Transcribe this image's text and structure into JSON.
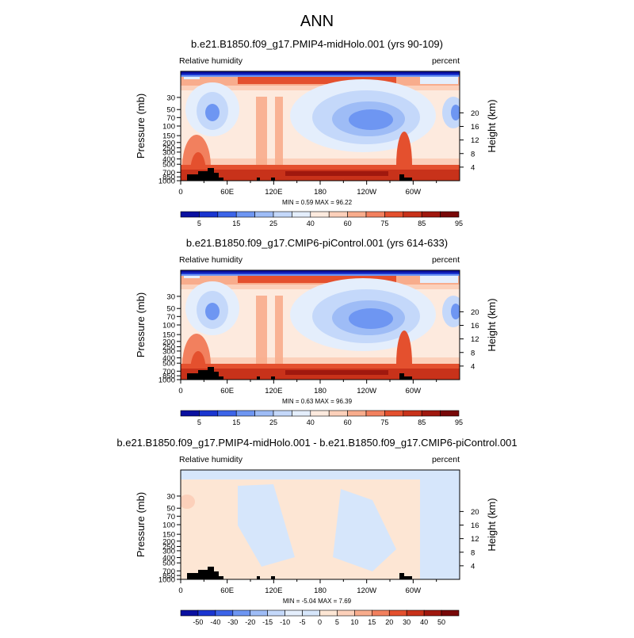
{
  "figure": {
    "title": "ANN"
  },
  "panels": [
    {
      "title": "b.e21.B1850.f09_g17.PMIP4-midHolo.001 (yrs 90-109)",
      "left_label": "Relative humidity",
      "right_label": "percent",
      "ylabel": "Pressure (mb)",
      "ylabel_right": "Height (km)",
      "stats": "MIN =   0.59  MAX =  96.22",
      "colorbar_labels": [
        "5",
        "15",
        "25",
        "40",
        "60",
        "75",
        "85",
        "95"
      ]
    },
    {
      "title": "b.e21.B1850.f09_g17.CMIP6-piControl.001 (yrs 614-633)",
      "left_label": "Relative humidity",
      "right_label": "percent",
      "ylabel": "Pressure (mb)",
      "ylabel_right": "Height (km)",
      "stats": "MIN =   0.63  MAX =  96.39",
      "colorbar_labels": [
        "5",
        "15",
        "25",
        "40",
        "60",
        "75",
        "85",
        "95"
      ]
    },
    {
      "title": "b.e21.B1850.f09_g17.PMIP4-midHolo.001 - b.e21.B1850.f09_g17.CMIP6-piControl.001",
      "left_label": "Relative humidity",
      "right_label": "percent",
      "ylabel": "Pressure (mb)",
      "ylabel_right": "Height (km)",
      "stats": "MIN =  -5.04  MAX =   7.69",
      "colorbar_labels": [
        "-50",
        "-40",
        "-30",
        "-20",
        "-15",
        "-10",
        "-5",
        "0",
        "5",
        "10",
        "15",
        "20",
        "30",
        "40",
        "50"
      ]
    }
  ],
  "axes": {
    "x_ticks": [
      "0",
      "60E",
      "120E",
      "180",
      "120W",
      "60W"
    ],
    "p_ticks": [
      "1000",
      "850",
      "700",
      "500",
      "400",
      "300",
      "250",
      "200",
      "150",
      "100",
      "70",
      "50",
      "30"
    ],
    "z_ticks": [
      "4",
      "8",
      "12",
      "16",
      "20"
    ]
  },
  "colors": {
    "abs_scale": [
      "#0a10a0",
      "#1a35d0",
      "#3c64e8",
      "#6e96f2",
      "#9ebcf6",
      "#c4d8fa",
      "#e4eefc",
      "#fdeade",
      "#fcd0ba",
      "#f8ac8c",
      "#f2805e",
      "#e4502e",
      "#c8321a",
      "#a0180e",
      "#780808"
    ],
    "diff_scale": [
      "#0a10a0",
      "#1a35d0",
      "#3c64e8",
      "#6e96f2",
      "#9ebcf6",
      "#c4d8fa",
      "#e4eefc",
      "#d6e6fb",
      "#fde6d4",
      "#fcd0ba",
      "#f8ac8c",
      "#f2805e",
      "#e4502e",
      "#c8321a",
      "#a0180e",
      "#780808"
    ]
  },
  "chart_data": [
    {
      "type": "heatmap",
      "title": "b.e21.B1850.f09_g17.PMIP4-midHolo.001 (yrs 90-109)",
      "variable": "Relative humidity",
      "units": "percent",
      "xlabel": "",
      "ylabel": "Pressure (mb)",
      "ylabel_right": "Height (km)",
      "x": [
        "0",
        "60E",
        "120E",
        "180",
        "120W",
        "60W"
      ],
      "y": [
        1000,
        850,
        700,
        500,
        400,
        300,
        250,
        200,
        150,
        100,
        70,
        50,
        30
      ],
      "y_scale": "log",
      "levels": [
        5,
        15,
        25,
        40,
        60,
        75,
        85,
        95
      ],
      "min": 0.59,
      "max": 96.22
    },
    {
      "type": "heatmap",
      "title": "b.e21.B1850.f09_g17.CMIP6-piControl.001 (yrs 614-633)",
      "variable": "Relative humidity",
      "units": "percent",
      "xlabel": "",
      "ylabel": "Pressure (mb)",
      "ylabel_right": "Height (km)",
      "x": [
        "0",
        "60E",
        "120E",
        "180",
        "120W",
        "60W"
      ],
      "y": [
        1000,
        850,
        700,
        500,
        400,
        300,
        250,
        200,
        150,
        100,
        70,
        50,
        30
      ],
      "y_scale": "log",
      "levels": [
        5,
        15,
        25,
        40,
        60,
        75,
        85,
        95
      ],
      "min": 0.63,
      "max": 96.39
    },
    {
      "type": "heatmap",
      "title": "b.e21.B1850.f09_g17.PMIP4-midHolo.001 - b.e21.B1850.f09_g17.CMIP6-piControl.001",
      "variable": "Relative humidity",
      "units": "percent",
      "xlabel": "",
      "ylabel": "Pressure (mb)",
      "ylabel_right": "Height (km)",
      "x": [
        "0",
        "60E",
        "120E",
        "180",
        "120W",
        "60W"
      ],
      "y": [
        1000,
        850,
        700,
        500,
        400,
        300,
        250,
        200,
        150,
        100,
        70,
        50,
        30
      ],
      "y_scale": "log",
      "levels": [
        -50,
        -40,
        -30,
        -20,
        -15,
        -10,
        -5,
        0,
        5,
        10,
        15,
        20,
        30,
        40,
        50
      ],
      "min": -5.04,
      "max": 7.69
    }
  ]
}
